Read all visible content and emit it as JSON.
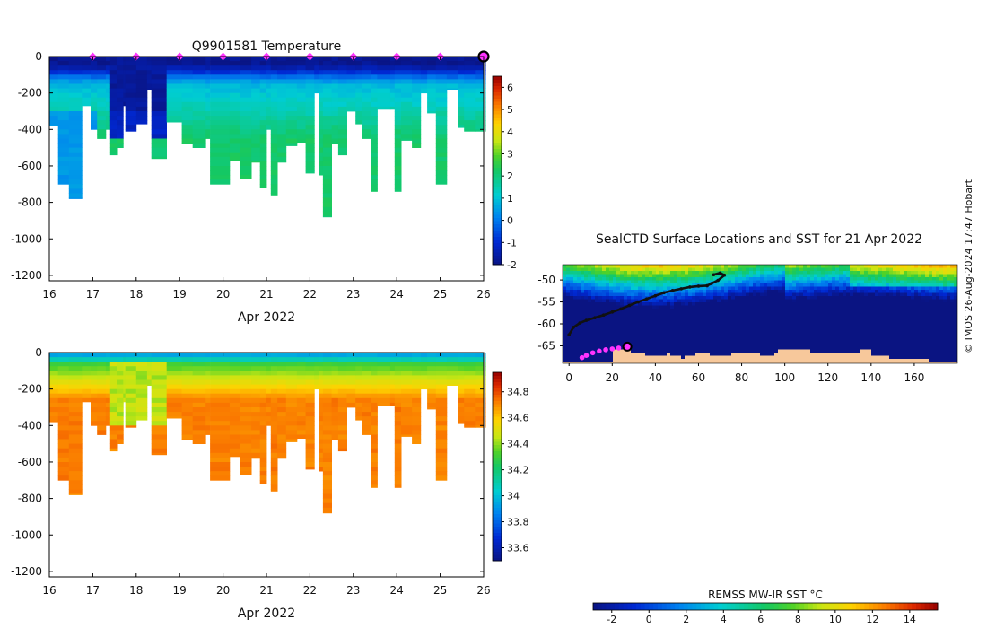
{
  "chart_data": [
    {
      "type": "heatmap",
      "title": "Q9901581  Temperature",
      "xlabel": "Apr 2022",
      "ylabel": "",
      "x_ticks": [
        "16",
        "17",
        "18",
        "19",
        "20",
        "21",
        "22",
        "23",
        "24",
        "25",
        "26"
      ],
      "xlim": [
        16,
        26
      ],
      "y_ticks": [
        0,
        -200,
        -400,
        -600,
        -800,
        -1000,
        -1200
      ],
      "ylim": [
        -1230,
        0
      ],
      "colorbar": {
        "ticks": [
          6,
          5,
          4,
          3,
          2,
          1,
          0,
          -1,
          -2
        ],
        "range": [
          -2,
          6.5
        ]
      },
      "colors": {
        "low": "#0b1a8c",
        "high": "#a00000"
      },
      "surface_markers_day": [
        17,
        18,
        19,
        20,
        21,
        22,
        23,
        24,
        25
      ],
      "latest_marker_day": 26
    },
    {
      "type": "heatmap",
      "title": "",
      "xlabel": "Apr 2022",
      "ylabel": "",
      "x_ticks": [
        "16",
        "17",
        "18",
        "19",
        "20",
        "21",
        "22",
        "23",
        "24",
        "25",
        "26"
      ],
      "xlim": [
        16,
        26
      ],
      "y_ticks": [
        0,
        -200,
        -400,
        -600,
        -800,
        -1000,
        -1200
      ],
      "ylim": [
        -1230,
        0
      ],
      "colorbar": {
        "ticks": [
          34.8,
          34.6,
          34.4,
          34.2,
          34,
          33.8,
          33.6
        ],
        "tick_labels": [
          "34.8",
          "34.6",
          "34.4",
          "34.2",
          "34",
          "33.8",
          "33.6"
        ],
        "range": [
          33.5,
          34.95
        ]
      }
    },
    {
      "type": "heatmap",
      "title": "SealCTD Surface Locations and SST for 21 Apr 2022",
      "x_ticks": [
        0,
        20,
        40,
        60,
        80,
        100,
        120,
        140,
        160
      ],
      "xlim": [
        -3,
        180
      ],
      "y_ticks": [
        -50,
        -55,
        -60,
        -65
      ],
      "ylim": [
        -69,
        -46.5
      ],
      "colorbar_label": "REMSS MW-IR SST °C",
      "colorbar_ticks": [
        -2,
        0,
        2,
        4,
        6,
        8,
        10,
        12,
        14
      ],
      "colorbar_range": [
        -3,
        15.5
      ],
      "land_color": "#f7c89b",
      "track_color": "#111111",
      "recent_color": "#ff33ff"
    }
  ],
  "profiles": [
    {
      "d": 16.0,
      "b": -380
    },
    {
      "d": 16.2,
      "b": -700
    },
    {
      "d": 16.45,
      "b": -780
    },
    {
      "d": 16.75,
      "b": -270
    },
    {
      "d": 16.95,
      "b": -400
    },
    {
      "d": 17.1,
      "b": -450
    },
    {
      "d": 17.3,
      "b": -400
    },
    {
      "d": 17.4,
      "b": -540
    },
    {
      "d": 17.55,
      "b": -500
    },
    {
      "d": 17.7,
      "b": -270
    },
    {
      "d": 17.75,
      "b": -410
    },
    {
      "d": 18.0,
      "b": -370
    },
    {
      "d": 18.25,
      "b": -180
    },
    {
      "d": 18.35,
      "b": -560
    },
    {
      "d": 18.7,
      "b": -360
    },
    {
      "d": 19.05,
      "b": -480
    },
    {
      "d": 19.3,
      "b": -500
    },
    {
      "d": 19.6,
      "b": -450
    },
    {
      "d": 19.7,
      "b": -700
    },
    {
      "d": 20.15,
      "b": -570
    },
    {
      "d": 20.4,
      "b": -670
    },
    {
      "d": 20.65,
      "b": -580
    },
    {
      "d": 20.85,
      "b": -720
    },
    {
      "d": 21.0,
      "b": -400
    },
    {
      "d": 21.1,
      "b": -760
    },
    {
      "d": 21.25,
      "b": -580
    },
    {
      "d": 21.45,
      "b": -490
    },
    {
      "d": 21.7,
      "b": -470
    },
    {
      "d": 21.9,
      "b": -640
    },
    {
      "d": 22.1,
      "b": -200
    },
    {
      "d": 22.2,
      "b": -650
    },
    {
      "d": 22.3,
      "b": -880
    },
    {
      "d": 22.5,
      "b": -480
    },
    {
      "d": 22.65,
      "b": -540
    },
    {
      "d": 22.85,
      "b": -300
    },
    {
      "d": 23.05,
      "b": -370
    },
    {
      "d": 23.2,
      "b": -450
    },
    {
      "d": 23.4,
      "b": -740
    },
    {
      "d": 23.55,
      "b": -290
    },
    {
      "d": 23.85,
      "b": -290
    },
    {
      "d": 23.95,
      "b": -740
    },
    {
      "d": 24.1,
      "b": -460
    },
    {
      "d": 24.35,
      "b": -500
    },
    {
      "d": 24.55,
      "b": -200
    },
    {
      "d": 24.7,
      "b": -310
    },
    {
      "d": 24.9,
      "b": -700
    },
    {
      "d": 25.15,
      "b": -180
    },
    {
      "d": 25.4,
      "b": -390
    },
    {
      "d": 25.55,
      "b": -410
    },
    {
      "d": 25.8,
      "b": -410
    },
    {
      "d": 26.05,
      "b": -410
    }
  ],
  "track_main": [
    [
      0,
      -62.5
    ],
    [
      2,
      -60.8
    ],
    [
      5,
      -59.8
    ],
    [
      8,
      -59.2
    ],
    [
      12,
      -58.6
    ],
    [
      16,
      -58.0
    ],
    [
      20,
      -57.3
    ],
    [
      24,
      -56.6
    ],
    [
      28,
      -55.8
    ],
    [
      32,
      -55.0
    ],
    [
      36,
      -54.3
    ],
    [
      40,
      -53.6
    ],
    [
      44,
      -52.9
    ],
    [
      48,
      -52.4
    ],
    [
      52,
      -52.0
    ],
    [
      56,
      -51.6
    ],
    [
      60,
      -51.4
    ],
    [
      64,
      -51.3
    ],
    [
      66,
      -50.8
    ],
    [
      69,
      -50.1
    ],
    [
      72,
      -48.9
    ],
    [
      70,
      -48.4
    ],
    [
      67,
      -48.8
    ]
  ],
  "track_recent": [
    [
      6,
      -67.7
    ],
    [
      8,
      -67.2
    ],
    [
      11,
      -66.6
    ],
    [
      14,
      -66.2
    ],
    [
      17,
      -65.9
    ],
    [
      20,
      -65.7
    ],
    [
      23,
      -65.5
    ]
  ],
  "latest_position": [
    27,
    -65.2
  ],
  "credit": "© IMOS 26-Aug-2024 17:47 Hobart"
}
